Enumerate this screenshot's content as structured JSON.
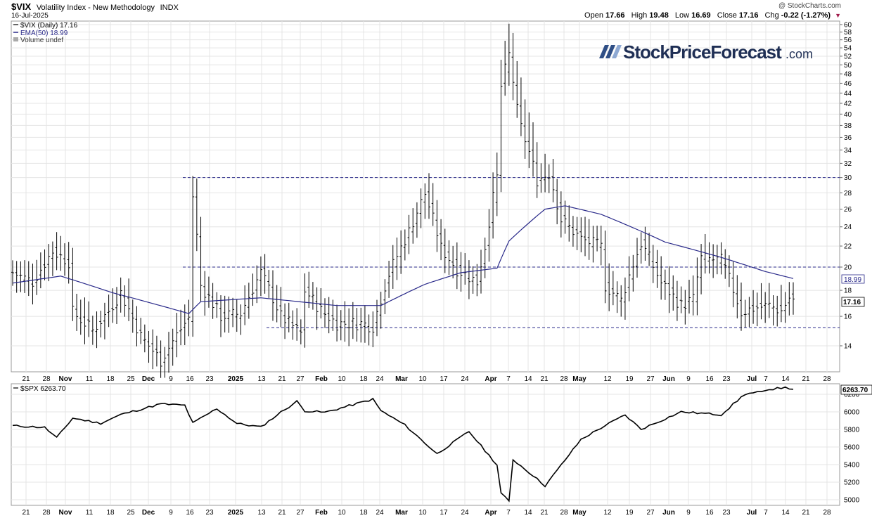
{
  "header": {
    "symbol": "$VIX",
    "description": "Volatility Index - New Methodology",
    "exchange": "INDX",
    "date": "16-Jul-2025",
    "copyright": "@ StockCharts.com",
    "ohlc": {
      "open_label": "Open",
      "open": "17.66",
      "high_label": "High",
      "high": "19.48",
      "low_label": "Low",
      "low": "16.69",
      "close_label": "Close",
      "close": "17.16",
      "chg_label": "Chg",
      "chg": "-0.22 (-1.27%)"
    }
  },
  "watermark": {
    "name": "StockPriceForecast",
    "suffix": ".com"
  },
  "legend": {
    "vix": "$VIX (Daily) 17.16",
    "ema": "EMA(50) 18.99",
    "volume": "Volume undef",
    "spx": "$SPX 6263.70"
  },
  "price_labels": {
    "ema": "18.99",
    "close": "17.16",
    "spx": "6263.70"
  },
  "colors": {
    "ema": "#2a2a8a",
    "hline": "#2a2a8a",
    "bar": "#000000",
    "grid": "#e4e4e4"
  },
  "chart_data": [
    {
      "type": "ohlc",
      "title": "$VIX (Daily)",
      "y_scale": "log",
      "ylim": [
        12.4,
        61
      ],
      "y_ticks": [
        14,
        16,
        18,
        20,
        22,
        24,
        26,
        28,
        30,
        32,
        34,
        36,
        38,
        40,
        42,
        44,
        46,
        48,
        50,
        52,
        54,
        56,
        58,
        60
      ],
      "x_tick_labels": [
        "21",
        "28",
        "Nov",
        "11",
        "18",
        "25",
        "Dec",
        "9",
        "16",
        "23",
        "2025",
        "13",
        "21",
        "27",
        "Feb",
        "10",
        "18",
        "24",
        "Mar",
        "10",
        "17",
        "24",
        "Apr",
        "7",
        "14",
        "21",
        "28",
        "May",
        "12",
        "19",
        "27",
        "Jun",
        "9",
        "16",
        "23",
        "Jul",
        "7",
        "14",
        "21",
        "28"
      ],
      "horizontal_lines": [
        30,
        20,
        15.2
      ],
      "anchors": [
        {
          "date": "2024-10-16",
          "close": 19.5
        },
        {
          "date": "2024-10-23",
          "close": 18.7
        },
        {
          "date": "2024-10-30",
          "close": 21.5
        },
        {
          "date": "2024-11-05",
          "close": 20.5
        },
        {
          "date": "2024-11-06",
          "close": 16.3
        },
        {
          "date": "2024-11-13",
          "close": 15.0
        },
        {
          "date": "2024-11-19",
          "close": 16.4
        },
        {
          "date": "2024-11-22",
          "close": 17.8
        },
        {
          "date": "2024-11-29",
          "close": 14.6
        },
        {
          "date": "2024-12-06",
          "close": 13.1
        },
        {
          "date": "2024-12-10",
          "close": 13.9
        },
        {
          "date": "2024-12-17",
          "close": 15.9
        },
        {
          "date": "2024-12-18",
          "close": 27.6
        },
        {
          "date": "2024-12-20",
          "close": 18.4
        },
        {
          "date": "2024-12-27",
          "close": 16.0
        },
        {
          "date": "2025-01-03",
          "close": 16.2
        },
        {
          "date": "2025-01-10",
          "close": 19.5
        },
        {
          "date": "2025-01-17",
          "close": 16.0
        },
        {
          "date": "2025-01-24",
          "close": 14.8
        },
        {
          "date": "2025-01-27",
          "close": 18.0
        },
        {
          "date": "2025-01-31",
          "close": 16.4
        },
        {
          "date": "2025-02-06",
          "close": 15.5
        },
        {
          "date": "2025-02-14",
          "close": 15.5
        },
        {
          "date": "2025-02-19",
          "close": 15.3
        },
        {
          "date": "2025-02-25",
          "close": 19.4
        },
        {
          "date": "2025-03-04",
          "close": 23.5
        },
        {
          "date": "2025-03-10",
          "close": 27.9
        },
        {
          "date": "2025-03-14",
          "close": 21.8
        },
        {
          "date": "2025-03-20",
          "close": 19.8
        },
        {
          "date": "2025-03-27",
          "close": 18.7
        },
        {
          "date": "2025-03-31",
          "close": 22.0
        },
        {
          "date": "2025-04-03",
          "close": 30.0
        },
        {
          "date": "2025-04-04",
          "close": 45.3
        },
        {
          "date": "2025-04-08",
          "close": 52.3
        },
        {
          "date": "2025-04-10",
          "close": 40.7
        },
        {
          "date": "2025-04-11",
          "close": 37.6
        },
        {
          "date": "2025-04-17",
          "close": 29.7
        },
        {
          "date": "2025-04-22",
          "close": 30.6
        },
        {
          "date": "2025-04-25",
          "close": 24.8
        },
        {
          "date": "2025-05-02",
          "close": 22.7
        },
        {
          "date": "2025-05-09",
          "close": 21.9
        },
        {
          "date": "2025-05-12",
          "close": 18.4
        },
        {
          "date": "2025-05-16",
          "close": 17.2
        },
        {
          "date": "2025-05-23",
          "close": 22.3
        },
        {
          "date": "2025-05-30",
          "close": 18.6
        },
        {
          "date": "2025-06-06",
          "close": 16.8
        },
        {
          "date": "2025-06-11",
          "close": 17.3
        },
        {
          "date": "2025-06-13",
          "close": 20.8
        },
        {
          "date": "2025-06-20",
          "close": 20.6
        },
        {
          "date": "2025-06-23",
          "close": 19.8
        },
        {
          "date": "2025-06-27",
          "close": 16.3
        },
        {
          "date": "2025-07-02",
          "close": 16.6
        },
        {
          "date": "2025-07-08",
          "close": 16.8
        },
        {
          "date": "2025-07-11",
          "close": 16.4
        },
        {
          "date": "2025-07-15",
          "close": 17.4
        },
        {
          "date": "2025-07-16",
          "close": 17.16
        }
      ],
      "ema_anchors": [
        {
          "date": "2024-10-16",
          "value": 18.6
        },
        {
          "date": "2024-11-01",
          "value": 19.2
        },
        {
          "date": "2024-11-20",
          "value": 17.8
        },
        {
          "date": "2024-12-17",
          "value": 16.2
        },
        {
          "date": "2024-12-20",
          "value": 17.1
        },
        {
          "date": "2025-01-10",
          "value": 17.4
        },
        {
          "date": "2025-02-06",
          "value": 16.8
        },
        {
          "date": "2025-02-21",
          "value": 16.8
        },
        {
          "date": "2025-03-10",
          "value": 18.5
        },
        {
          "date": "2025-03-21",
          "value": 19.5
        },
        {
          "date": "2025-04-03",
          "value": 19.9
        },
        {
          "date": "2025-04-08",
          "value": 22.5
        },
        {
          "date": "2025-04-21",
          "value": 26.0
        },
        {
          "date": "2025-04-28",
          "value": 26.4
        },
        {
          "date": "2025-05-09",
          "value": 25.4
        },
        {
          "date": "2025-06-02",
          "value": 22.4
        },
        {
          "date": "2025-06-20",
          "value": 20.9
        },
        {
          "date": "2025-07-07",
          "value": 19.6
        },
        {
          "date": "2025-07-16",
          "value": 18.99
        }
      ]
    },
    {
      "type": "line",
      "title": "$SPX",
      "ylim": [
        4930,
        6320
      ],
      "y_ticks": [
        5000,
        5200,
        5400,
        5600,
        5800,
        6000,
        6200
      ],
      "x_tick_labels": [
        "21",
        "28",
        "Nov",
        "11",
        "18",
        "25",
        "Dec",
        "9",
        "16",
        "23",
        "2025",
        "13",
        "21",
        "27",
        "Feb",
        "10",
        "18",
        "24",
        "Mar",
        "10",
        "17",
        "24",
        "Apr",
        "7",
        "14",
        "21",
        "28",
        "May",
        "12",
        "19",
        "27",
        "Jun",
        "9",
        "16",
        "23",
        "Jul",
        "7",
        "14",
        "21",
        "28"
      ],
      "anchors": [
        {
          "date": "2024-10-16",
          "value": 5842
        },
        {
          "date": "2024-10-28",
          "value": 5823
        },
        {
          "date": "2024-10-31",
          "value": 5705
        },
        {
          "date": "2024-11-06",
          "value": 5929
        },
        {
          "date": "2024-11-15",
          "value": 5870
        },
        {
          "date": "2024-11-22",
          "value": 5969
        },
        {
          "date": "2024-12-06",
          "value": 6090
        },
        {
          "date": "2024-12-16",
          "value": 6074
        },
        {
          "date": "2024-12-18",
          "value": 5872
        },
        {
          "date": "2024-12-26",
          "value": 6037
        },
        {
          "date": "2025-01-02",
          "value": 5868
        },
        {
          "date": "2025-01-10",
          "value": 5827
        },
        {
          "date": "2025-01-17",
          "value": 5997
        },
        {
          "date": "2025-01-23",
          "value": 6119
        },
        {
          "date": "2025-01-27",
          "value": 6012
        },
        {
          "date": "2025-02-03",
          "value": 5994
        },
        {
          "date": "2025-02-19",
          "value": 6144
        },
        {
          "date": "2025-02-21",
          "value": 6013
        },
        {
          "date": "2025-03-03",
          "value": 5850
        },
        {
          "date": "2025-03-13",
          "value": 5522
        },
        {
          "date": "2025-03-25",
          "value": 5777
        },
        {
          "date": "2025-04-03",
          "value": 5396
        },
        {
          "date": "2025-04-04",
          "value": 5074
        },
        {
          "date": "2025-04-08",
          "value": 4982
        },
        {
          "date": "2025-04-09",
          "value": 5457
        },
        {
          "date": "2025-04-16",
          "value": 5275
        },
        {
          "date": "2025-04-21",
          "value": 5158
        },
        {
          "date": "2025-05-02",
          "value": 5687
        },
        {
          "date": "2025-05-12",
          "value": 5844
        },
        {
          "date": "2025-05-19",
          "value": 5964
        },
        {
          "date": "2025-05-23",
          "value": 5803
        },
        {
          "date": "2025-06-06",
          "value": 6000
        },
        {
          "date": "2025-06-20",
          "value": 5968
        },
        {
          "date": "2025-06-30",
          "value": 6205
        },
        {
          "date": "2025-07-07",
          "value": 6230
        },
        {
          "date": "2025-07-10",
          "value": 6280
        },
        {
          "date": "2025-07-16",
          "value": 6263.7
        }
      ]
    }
  ]
}
